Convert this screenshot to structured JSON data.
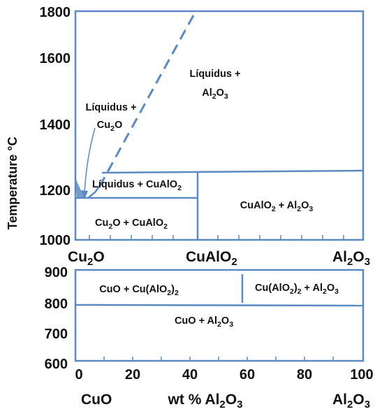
{
  "colors": {
    "line": "#5b8ac2",
    "text": "#111111",
    "background": "#ffffff"
  },
  "upper": {
    "ylabel": "Temperature °C",
    "yticks": [
      "1800",
      "1600",
      "1400",
      "1200",
      "1000"
    ],
    "xlabels": {
      "left_pre": "Cu",
      "left_sub": "2",
      "left_post": "O",
      "mid_pre": "CuAlO",
      "mid_sub": "2",
      "right_pre": "Al",
      "right_sub1": "2",
      "right_mid": "O",
      "right_sub2": "3"
    },
    "regions": {
      "liq_al2o3": {
        "line1": "Líquidus +",
        "l2_pre": "Al",
        "l2_sub1": "2",
        "l2_mid": "O",
        "l2_sub2": "3"
      },
      "liq_cu2o": {
        "line1": "Líquidus +",
        "l2_pre": "Cu",
        "l2_sub": "2",
        "l2_post": "O"
      },
      "liq_cualo2": {
        "pre": "Líquidus + CuAlO",
        "sub": "2"
      },
      "cualo2_al2o3": {
        "p1": "CuAlO",
        "s1": "2",
        "p2": " + Al",
        "s2": "2",
        "p3": "O",
        "s3": "3"
      },
      "cu2o_cualo2": {
        "p1": "Cu",
        "s1": "2",
        "p2": "O + CuAlO",
        "s2": "2"
      }
    }
  },
  "lower": {
    "yticks": [
      "900",
      "800",
      "700",
      "600"
    ],
    "xticks": [
      "0",
      "20",
      "40",
      "60",
      "80",
      "100"
    ],
    "regions": {
      "cuo_cualo2_2": {
        "p1": "CuO + Cu(AlO",
        "s1": "2",
        "p2": ")",
        "s2": "2"
      },
      "cualo2_2_al2o3": {
        "p1": "Cu(AlO",
        "s1": "2",
        "p2": ")",
        "s2": "2",
        "p3": " + Al",
        "s3": "2",
        "p4": "O",
        "s4": "3"
      },
      "cuo_al2o3": {
        "p1": "CuO + Al",
        "s1": "2",
        "p2": "O",
        "s2": "3"
      }
    },
    "xlabels": {
      "left": "CuO",
      "mid_pre": "wt % Al",
      "mid_sub1": "2",
      "mid_mid": "O",
      "mid_sub2": "3",
      "right_pre": "Al",
      "right_sub1": "2",
      "right_mid": "O",
      "right_sub2": "3"
    }
  }
}
